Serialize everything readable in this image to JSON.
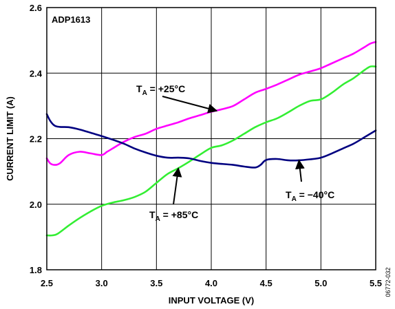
{
  "chart_data": {
    "type": "line",
    "chip_label": "ADP1613",
    "xlabel": "INPUT VOLTAGE (V)",
    "ylabel": "CURRENT LIMIT (A)",
    "xlim": [
      2.5,
      5.5
    ],
    "ylim": [
      1.8,
      2.6
    ],
    "x_ticks": [
      "2.5",
      "3.0",
      "3.5",
      "4.0",
      "4.5",
      "5.0",
      "5.5"
    ],
    "y_ticks": [
      "1.8",
      "2.0",
      "2.2",
      "2.4",
      "2.6"
    ],
    "grid": true,
    "figure_id": "06772-032",
    "series": [
      {
        "name": "TA = +25°C",
        "color": "#ff00ff",
        "x": [
          2.5,
          2.53,
          2.57,
          2.62,
          2.7,
          2.8,
          2.9,
          3.0,
          3.05,
          3.1,
          3.2,
          3.3,
          3.4,
          3.5,
          3.6,
          3.7,
          3.8,
          3.9,
          4.0,
          4.1,
          4.2,
          4.3,
          4.4,
          4.5,
          4.6,
          4.7,
          4.8,
          4.9,
          5.0,
          5.1,
          5.2,
          5.3,
          5.4,
          5.45,
          5.5
        ],
        "values": [
          2.14,
          2.125,
          2.12,
          2.125,
          2.15,
          2.16,
          2.155,
          2.15,
          2.16,
          2.17,
          2.19,
          2.205,
          2.215,
          2.23,
          2.24,
          2.25,
          2.262,
          2.272,
          2.282,
          2.29,
          2.3,
          2.32,
          2.34,
          2.352,
          2.365,
          2.38,
          2.395,
          2.405,
          2.415,
          2.43,
          2.445,
          2.46,
          2.48,
          2.49,
          2.495
        ]
      },
      {
        "name": "TA = +85°C",
        "color": "#33ee33",
        "x": [
          2.5,
          2.55,
          2.6,
          2.7,
          2.8,
          2.9,
          3.0,
          3.1,
          3.2,
          3.3,
          3.4,
          3.5,
          3.6,
          3.7,
          3.8,
          3.9,
          4.0,
          4.1,
          4.2,
          4.3,
          4.4,
          4.5,
          4.6,
          4.7,
          4.8,
          4.9,
          5.0,
          5.1,
          5.2,
          5.3,
          5.4,
          5.45,
          5.5
        ],
        "values": [
          1.905,
          1.905,
          1.91,
          1.935,
          1.958,
          1.978,
          1.995,
          2.005,
          2.012,
          2.022,
          2.038,
          2.065,
          2.092,
          2.11,
          2.13,
          2.152,
          2.172,
          2.18,
          2.195,
          2.215,
          2.235,
          2.25,
          2.262,
          2.28,
          2.3,
          2.315,
          2.32,
          2.34,
          2.365,
          2.385,
          2.41,
          2.42,
          2.42
        ]
      },
      {
        "name": "TA = −40°C",
        "color": "#000080",
        "x": [
          2.5,
          2.53,
          2.57,
          2.62,
          2.7,
          2.8,
          2.9,
          3.0,
          3.1,
          3.2,
          3.3,
          3.4,
          3.5,
          3.6,
          3.7,
          3.8,
          3.9,
          4.0,
          4.1,
          4.2,
          4.3,
          4.4,
          4.45,
          4.5,
          4.6,
          4.7,
          4.8,
          4.9,
          5.0,
          5.1,
          5.2,
          5.3,
          5.4,
          5.5
        ],
        "values": [
          2.275,
          2.255,
          2.24,
          2.236,
          2.235,
          2.228,
          2.218,
          2.208,
          2.197,
          2.185,
          2.17,
          2.158,
          2.148,
          2.142,
          2.142,
          2.14,
          2.132,
          2.126,
          2.123,
          2.12,
          2.115,
          2.112,
          2.12,
          2.135,
          2.138,
          2.134,
          2.134,
          2.137,
          2.142,
          2.155,
          2.17,
          2.185,
          2.205,
          2.225
        ]
      }
    ],
    "annotations": [
      {
        "series": 0,
        "prefix": "T",
        "sub": "A",
        "suffix": " = +25°C",
        "arrow_to": [
          4.05,
          2.285
        ]
      },
      {
        "series": 1,
        "prefix": "T",
        "sub": "A",
        "suffix": " = +85°C",
        "arrow_to": [
          3.7,
          2.11
        ]
      },
      {
        "series": 2,
        "prefix": "T",
        "sub": "A",
        "suffix": " = −40°C",
        "arrow_to": [
          4.8,
          2.134
        ]
      }
    ]
  }
}
